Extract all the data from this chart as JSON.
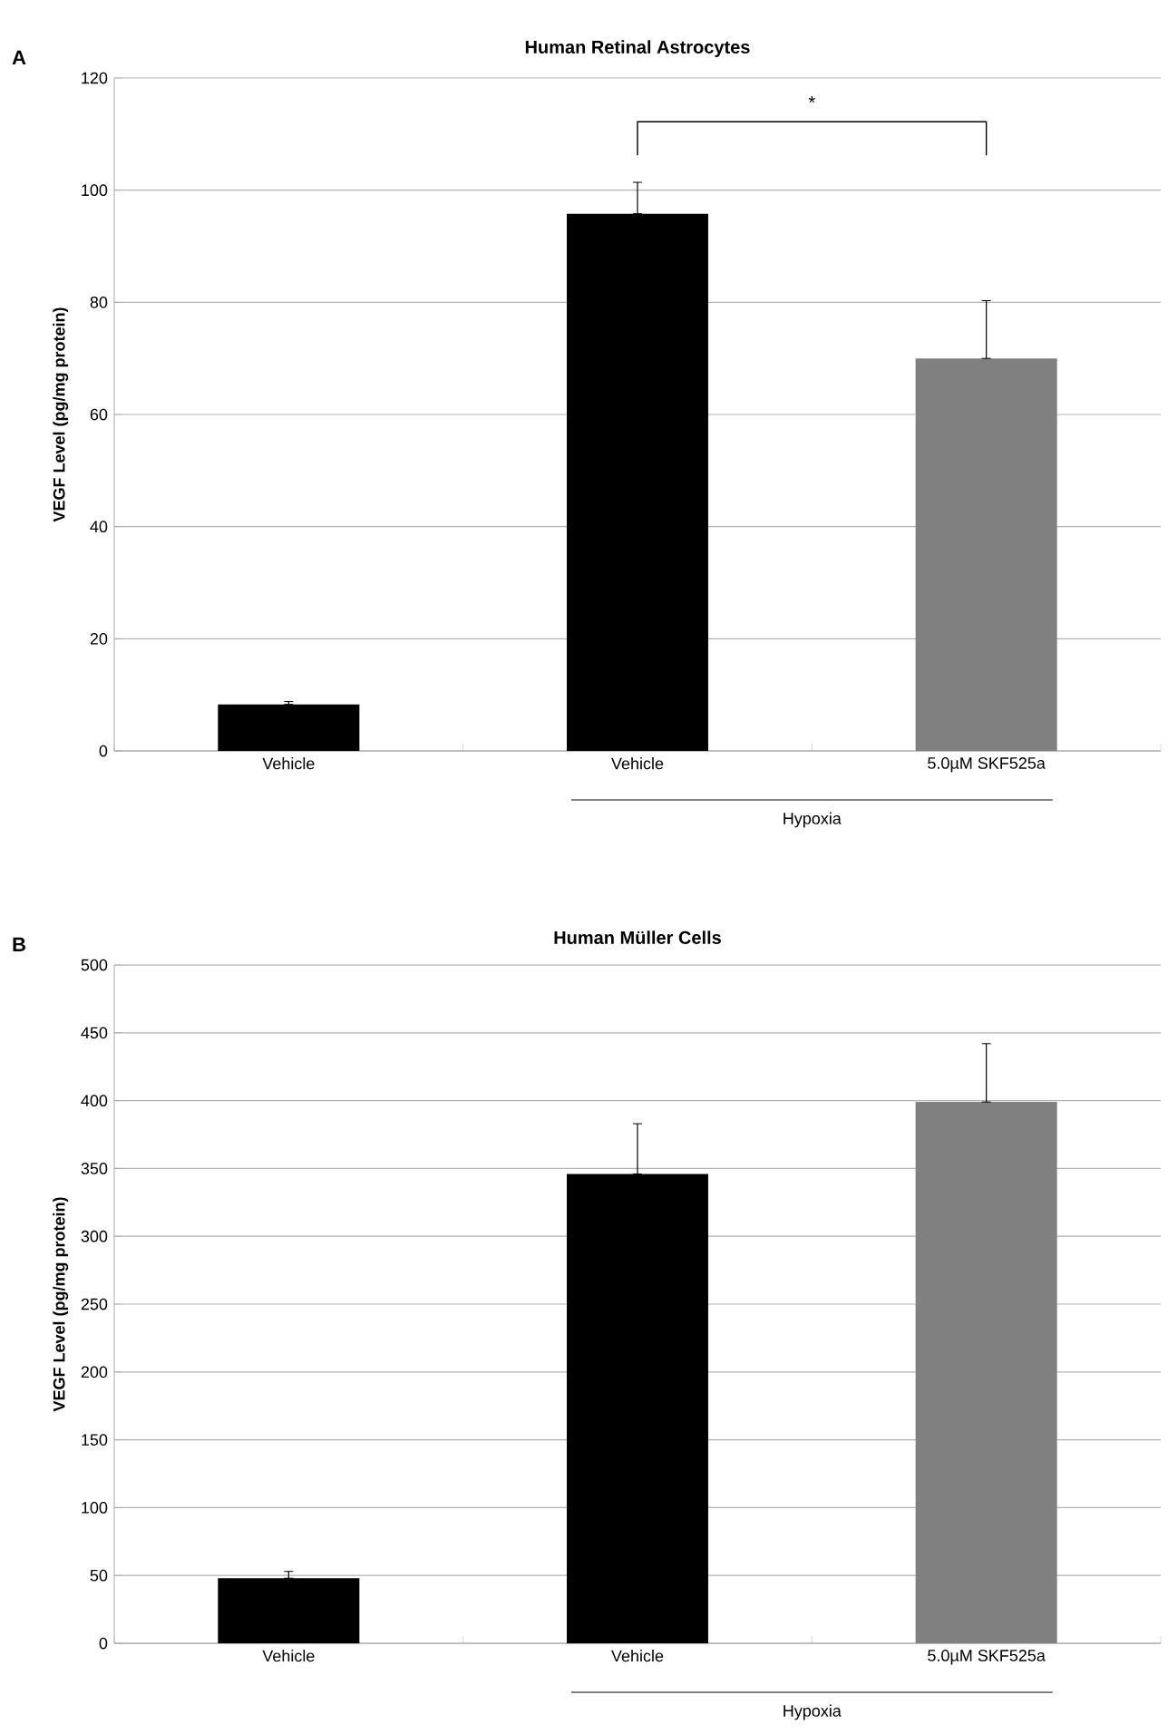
{
  "chart_data": [
    {
      "type": "bar",
      "title": "Human Retinal Astrocytes",
      "ylabel": "VEGF Level (pg/mg protein)",
      "categories": [
        "Vehicle",
        "Vehicle",
        "5.0µM SKF525a"
      ],
      "values": [
        8.3,
        95.8,
        70
      ],
      "errors": [
        [
          8.3,
          8.8
        ],
        [
          95.8,
          101.4
        ],
        [
          70,
          80.3
        ]
      ],
      "colors": [
        "#000000",
        "#000000",
        "#808080"
      ],
      "ylim": [
        0,
        120
      ],
      "yticks": [
        0,
        20,
        40,
        60,
        80,
        100,
        120
      ],
      "grid": "y",
      "annotations": [
        "A",
        "*",
        "Hypoxia"
      ]
    },
    {
      "type": "bar",
      "title": "Human Müller Cells",
      "ylabel": "VEGF Level (pg/mg protein)",
      "categories": [
        "Vehicle",
        "Vehicle",
        "5.0µM SKF525a"
      ],
      "values": [
        48,
        346,
        399
      ],
      "errors": [
        [
          48,
          53
        ],
        [
          346,
          383
        ],
        [
          399,
          442
        ]
      ],
      "colors": [
        "#000000",
        "#000000",
        "#808080"
      ],
      "ylim": [
        0,
        500
      ],
      "yticks": [
        0,
        50,
        100,
        150,
        200,
        250,
        300,
        350,
        400,
        450,
        500
      ],
      "grid": "y",
      "annotations": [
        "B",
        "Hypoxia"
      ]
    }
  ]
}
